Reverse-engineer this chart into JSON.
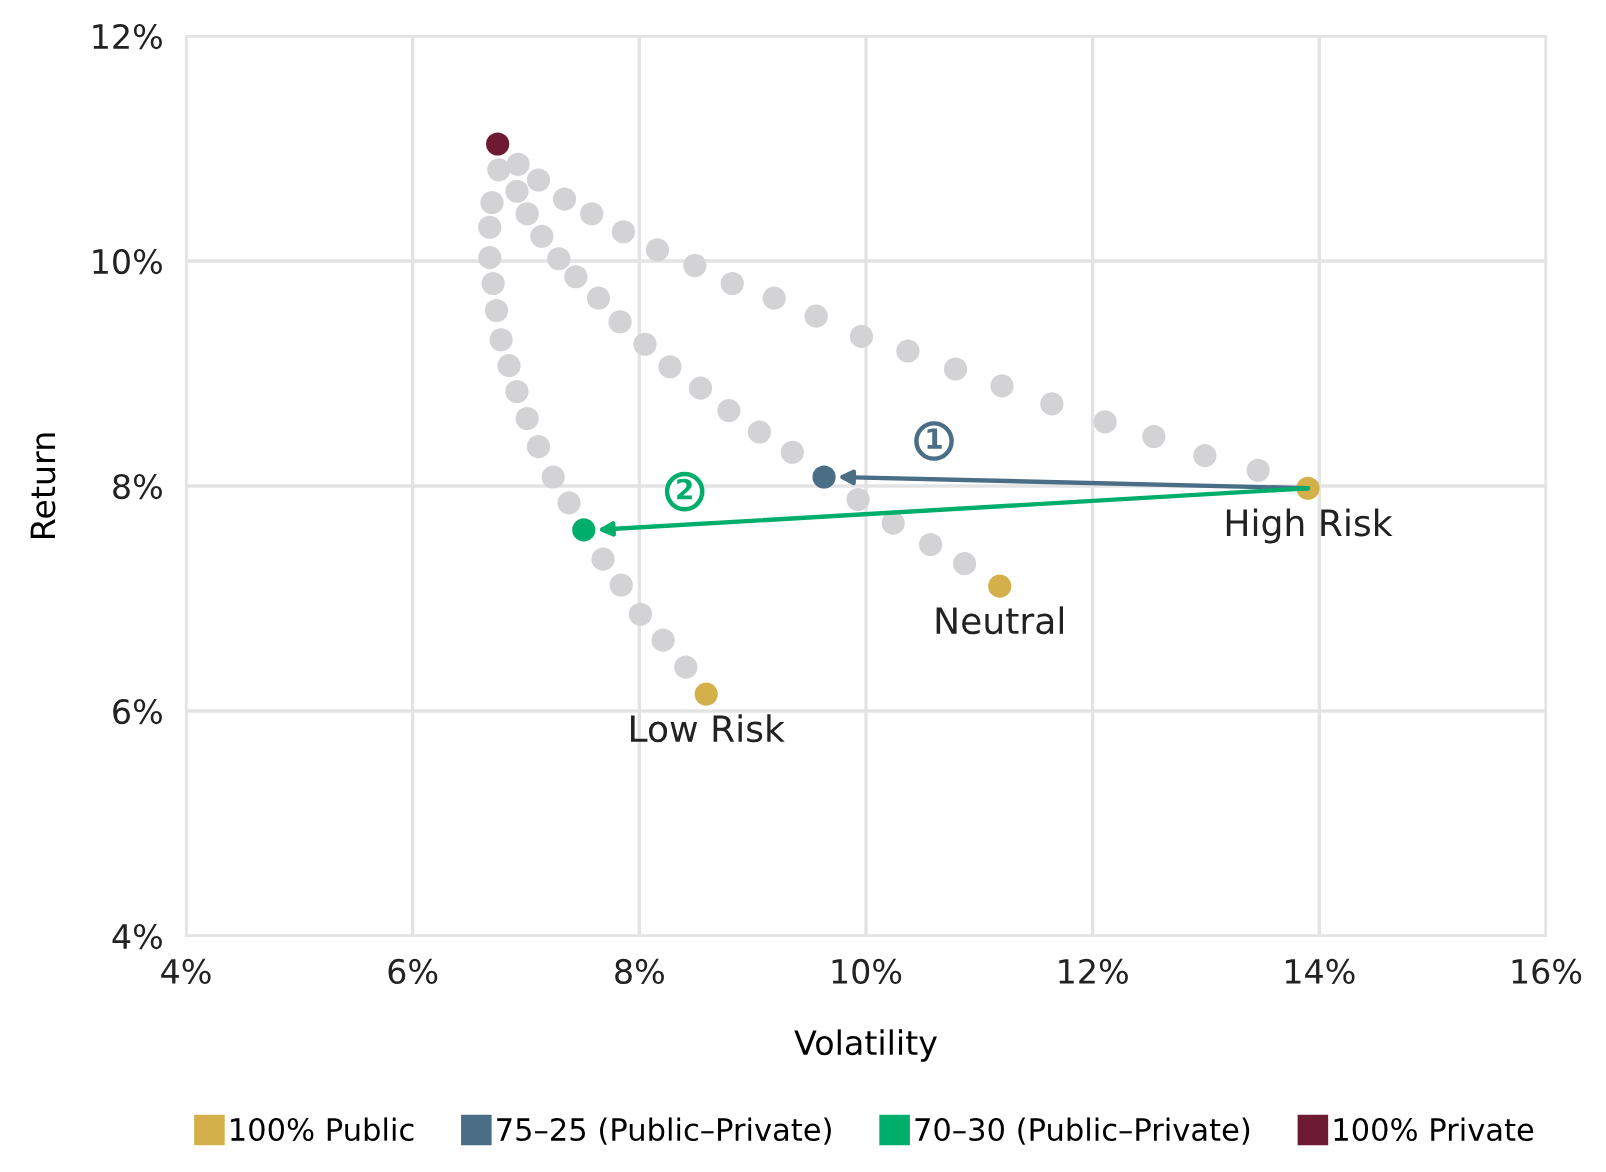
{
  "chart_data": {
    "type": "scatter",
    "xlabel": "Volatility",
    "ylabel": "Return",
    "xlim": [
      4,
      16
    ],
    "xticks": [
      {
        "value": 4,
        "label": "4%"
      },
      {
        "value": 6,
        "label": "6%"
      },
      {
        "value": 8,
        "label": "8%"
      },
      {
        "value": 10,
        "label": "10%"
      },
      {
        "value": 12,
        "label": "12%"
      },
      {
        "value": 14,
        "label": "14%"
      },
      {
        "value": 16,
        "label": "16%"
      }
    ],
    "ylim": [
      4,
      12
    ],
    "yticks": [
      {
        "value": 4,
        "label": "4%"
      },
      {
        "value": 6,
        "label": "6%"
      },
      {
        "value": 8,
        "label": "8%"
      },
      {
        "value": 10,
        "label": "10%"
      },
      {
        "value": 12,
        "label": "12%"
      }
    ],
    "grid": true,
    "legend": "bottom",
    "marker": "circle",
    "series": [
      {
        "color": "#d3d3d5",
        "x": [
          6.93,
          7.11,
          7.34,
          7.58,
          7.86,
          8.16,
          8.49,
          8.82,
          9.19,
          9.56,
          9.96,
          10.37,
          10.79,
          11.2,
          11.64,
          12.11,
          12.54,
          12.99,
          13.46
        ],
        "values": [
          10.86,
          10.72,
          10.55,
          10.42,
          10.26,
          10.1,
          9.96,
          9.8,
          9.67,
          9.51,
          9.33,
          9.2,
          9.04,
          8.89,
          8.73,
          8.57,
          8.44,
          8.27,
          8.14
        ]
      },
      {
        "color": "#d3d3d5",
        "x": [
          6.92,
          7.01,
          7.14,
          7.29,
          7.44,
          7.64,
          7.83,
          8.05,
          8.27,
          8.54,
          8.79,
          9.06,
          9.35,
          9.93,
          10.24,
          10.57,
          10.87
        ],
        "values": [
          10.62,
          10.42,
          10.22,
          10.02,
          9.86,
          9.67,
          9.46,
          9.26,
          9.06,
          8.87,
          8.67,
          8.48,
          8.3,
          7.88,
          7.67,
          7.48,
          7.31
        ]
      },
      {
        "color": "#d3d3d5",
        "x": [
          6.76,
          6.7,
          6.68,
          6.68,
          6.71,
          6.74,
          6.78,
          6.85,
          6.92,
          7.01,
          7.11,
          7.24,
          7.38,
          7.68,
          7.84,
          8.01,
          8.21,
          8.41
        ],
        "values": [
          10.81,
          10.52,
          10.3,
          10.03,
          9.8,
          9.56,
          9.3,
          9.07,
          8.84,
          8.6,
          8.35,
          8.08,
          7.85,
          7.35,
          7.12,
          6.86,
          6.63,
          6.39
        ]
      },
      {
        "name": "100% Public",
        "color": "#d4b04a",
        "x": [
          13.9,
          11.18,
          8.59
        ],
        "values": [
          7.98,
          7.11,
          6.15
        ]
      },
      {
        "name": "75–25 (Public–Private)",
        "color": "#4a6e86",
        "x": [
          9.63
        ],
        "values": [
          8.08
        ]
      },
      {
        "name": "70–30 (Public–Private)",
        "color": "#00ae6b",
        "x": [
          7.51
        ],
        "values": [
          7.61
        ]
      },
      {
        "name": "100% Private",
        "color": "#6e1a32",
        "x": [
          6.75
        ],
        "values": [
          11.04
        ]
      }
    ],
    "annotations": [
      {
        "text": "High Risk",
        "x": 13.9,
        "y": 7.98
      },
      {
        "text": "Neutral",
        "x": 11.18,
        "y": 7.11
      },
      {
        "text": "Low Risk",
        "x": 8.59,
        "y": 6.15
      },
      {
        "text": "1",
        "x": 10.6,
        "y": 8.4
      },
      {
        "text": "2",
        "x": 8.4,
        "y": 7.95
      }
    ]
  }
}
